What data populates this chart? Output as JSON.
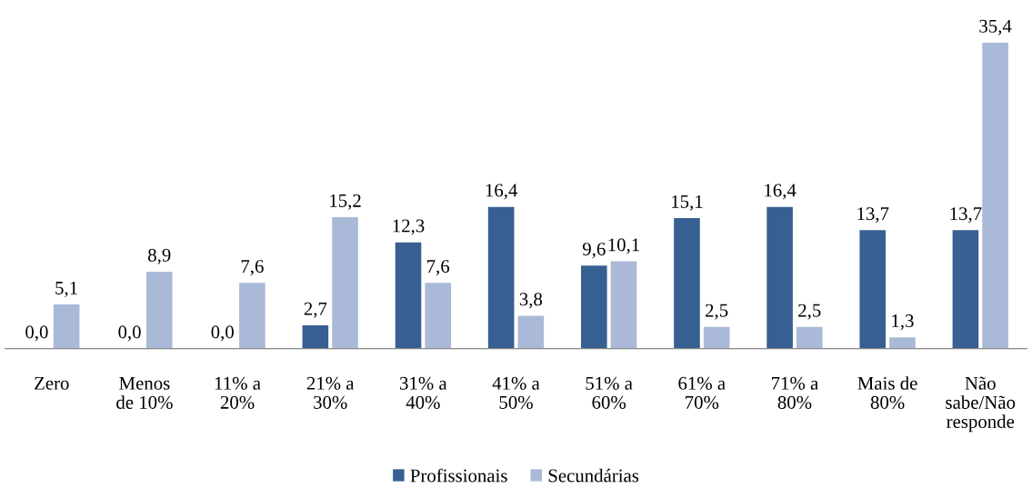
{
  "chart_data": {
    "type": "bar",
    "categories": [
      "Zero",
      "Menos\nde 10%",
      "11% a\n20%",
      "21% a\n30%",
      "31% a\n40%",
      "41% a\n50%",
      "51% a\n60%",
      "61% a\n70%",
      "71% a\n80%",
      "Mais de\n80%",
      "Não\nsabe/Não\nresponde"
    ],
    "series": [
      {
        "name": "Profissionais",
        "color": "#375f91",
        "values": [
          0.0,
          0.0,
          0.0,
          2.7,
          12.3,
          16.4,
          9.6,
          15.1,
          16.4,
          13.7,
          13.7
        ],
        "value_labels": [
          "0,0",
          "0,0",
          "0,0",
          "2,7",
          "12,3",
          "16,4",
          "9,6",
          "15,1",
          "16,4",
          "13,7",
          "13,7"
        ]
      },
      {
        "name": "Secundárias",
        "color": "#a9b9d7",
        "values": [
          5.1,
          8.9,
          7.6,
          15.2,
          7.6,
          3.8,
          10.1,
          2.5,
          2.5,
          1.3,
          35.4
        ],
        "value_labels": [
          "5,1",
          "8,9",
          "7,6",
          "15,2",
          "7,6",
          "3,8",
          "10,1",
          "2,5",
          "2,5",
          "1,3",
          "35,4"
        ]
      }
    ],
    "legend": "bottom",
    "grid": false
  }
}
